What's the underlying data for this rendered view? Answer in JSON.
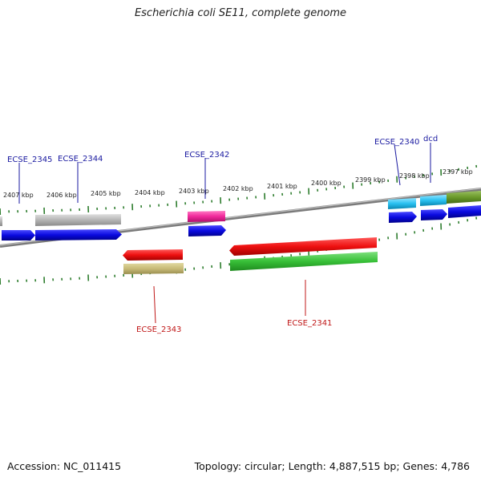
{
  "title": "Escherichia coli SE11, complete genome",
  "footer": {
    "accession": "Accession: NC_011415",
    "summary": "Topology: circular; Length: 4,887,515 bp; Genes: 4,786"
  },
  "colors": {
    "backbone": "#8c8c8c",
    "ticks": "#2e7d2e",
    "forward_label": "#1a1aa0",
    "reverse_label": "#c01818"
  },
  "scale_labels": [
    "2407 kbp",
    "2406 kbp",
    "2405 kbp",
    "2404 kbp",
    "2403 kbp",
    "2402 kbp",
    "2401 kbp",
    "2400 kbp",
    "2399 kbp",
    "2398 kbp",
    "2397 kbp"
  ],
  "genes_forward": [
    {
      "name": "ECSE_2345"
    },
    {
      "name": "ECSE_2344"
    },
    {
      "name": "ECSE_2342"
    },
    {
      "name": "ECSE_2340"
    },
    {
      "name": "dcd"
    }
  ],
  "genes_reverse": [
    {
      "name": "ECSE_2343"
    },
    {
      "name": "ECSE_2341"
    }
  ]
}
